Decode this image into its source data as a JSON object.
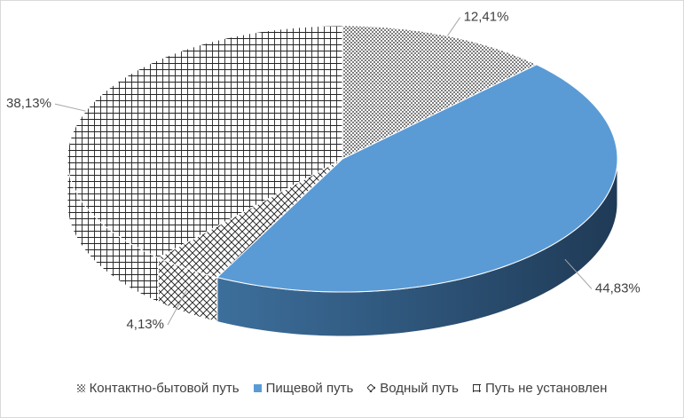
{
  "chart_data": {
    "type": "pie3d",
    "categories": [
      "Контактно-бытовой путь",
      "Пищевой путь",
      "Водный путь",
      "Путь не установлен"
    ],
    "values": [
      12.41,
      44.83,
      4.13,
      38.13
    ],
    "value_labels": [
      "12,41%",
      "44,83%",
      "4,13%",
      "38,13%"
    ],
    "colors": [
      "#000000",
      "#5b9bd5",
      "#000000",
      "#000000"
    ],
    "patterns": [
      "dots",
      "solid",
      "weave",
      "grid"
    ],
    "legend": "bottom"
  }
}
